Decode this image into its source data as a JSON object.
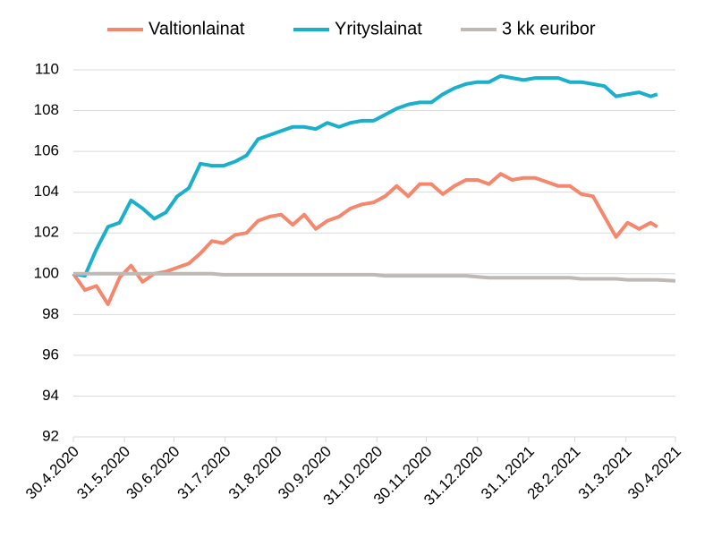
{
  "chart_data": {
    "type": "line",
    "x": [
      "30.4.2020",
      "7.5.2020",
      "14.5.2020",
      "21.5.2020",
      "28.5.2020",
      "4.6.2020",
      "11.6.2020",
      "18.6.2020",
      "25.6.2020",
      "2.7.2020",
      "9.7.2020",
      "16.7.2020",
      "23.7.2020",
      "30.7.2020",
      "6.8.2020",
      "13.8.2020",
      "20.8.2020",
      "27.8.2020",
      "3.9.2020",
      "10.9.2020",
      "17.9.2020",
      "24.9.2020",
      "1.10.2020",
      "8.10.2020",
      "15.10.2020",
      "22.10.2020",
      "29.10.2020",
      "5.11.2020",
      "12.11.2020",
      "19.11.2020",
      "26.11.2020",
      "3.12.2020",
      "10.12.2020",
      "17.12.2020",
      "24.12.2020",
      "31.12.2020",
      "7.1.2021",
      "14.1.2021",
      "21.1.2021",
      "28.1.2021",
      "4.2.2021",
      "11.2.2021",
      "18.2.2021",
      "25.2.2021",
      "4.3.2021",
      "11.3.2021",
      "18.3.2021",
      "25.3.2021",
      "1.4.2021",
      "8.4.2021",
      "15.4.2021",
      "19.4.2021",
      "30.4.2021"
    ],
    "series": [
      {
        "name": "Valtionlainat",
        "color": "#f4876c",
        "values": [
          100.0,
          99.2,
          99.4,
          98.5,
          99.8,
          100.4,
          99.6,
          100.0,
          100.1,
          100.3,
          100.5,
          101.0,
          101.6,
          101.5,
          101.9,
          102.0,
          102.6,
          102.8,
          102.9,
          102.4,
          102.9,
          102.2,
          102.6,
          102.8,
          103.2,
          103.4,
          103.5,
          103.8,
          104.3,
          103.8,
          104.4,
          104.4,
          103.9,
          104.3,
          104.6,
          104.6,
          104.4,
          104.9,
          104.6,
          104.7,
          104.7,
          104.5,
          104.3,
          104.3,
          103.9,
          103.8,
          102.8,
          101.8,
          102.5,
          102.2,
          102.5,
          102.3,
          null
        ]
      },
      {
        "name": "Yrityslainat",
        "color": "#1aafca",
        "values": [
          100.0,
          99.9,
          101.2,
          102.3,
          102.5,
          103.6,
          103.2,
          102.7,
          103.0,
          103.8,
          104.2,
          105.4,
          105.3,
          105.3,
          105.5,
          105.8,
          106.6,
          106.8,
          107.0,
          107.2,
          107.2,
          107.1,
          107.4,
          107.2,
          107.4,
          107.5,
          107.5,
          107.8,
          108.1,
          108.3,
          108.4,
          108.4,
          108.8,
          109.1,
          109.3,
          109.4,
          109.4,
          109.7,
          109.6,
          109.5,
          109.6,
          109.6,
          109.6,
          109.4,
          109.4,
          109.3,
          109.2,
          108.7,
          108.8,
          108.9,
          108.7,
          108.8,
          null
        ]
      },
      {
        "name": "3 kk euribor",
        "color": "#bfb9b5",
        "values": [
          100.0,
          100.0,
          100.0,
          100.0,
          100.0,
          100.0,
          100.0,
          100.0,
          100.0,
          100.0,
          100.0,
          100.0,
          100.0,
          99.95,
          99.95,
          99.95,
          99.95,
          99.95,
          99.95,
          99.95,
          99.95,
          99.95,
          99.95,
          99.95,
          99.95,
          99.95,
          99.95,
          99.9,
          99.9,
          99.9,
          99.9,
          99.9,
          99.9,
          99.9,
          99.9,
          99.85,
          99.8,
          99.8,
          99.8,
          99.8,
          99.8,
          99.8,
          99.8,
          99.8,
          99.75,
          99.75,
          99.75,
          99.75,
          99.7,
          99.7,
          99.7,
          99.7,
          99.65
        ]
      }
    ],
    "xlim": [
      "30.4.2020",
      "30.4.2021"
    ],
    "xticks": [
      "30.4.2020",
      "31.5.2020",
      "30.6.2020",
      "31.7.2020",
      "31.8.2020",
      "30.9.2020",
      "31.10.2020",
      "30.11.2020",
      "31.12.2020",
      "31.1.2021",
      "28.2.2021",
      "31.3.2021",
      "30.4.2021"
    ],
    "ylim": [
      92,
      110
    ],
    "yticks": [
      92,
      94,
      96,
      98,
      100,
      102,
      104,
      106,
      108,
      110
    ],
    "grid": true
  }
}
